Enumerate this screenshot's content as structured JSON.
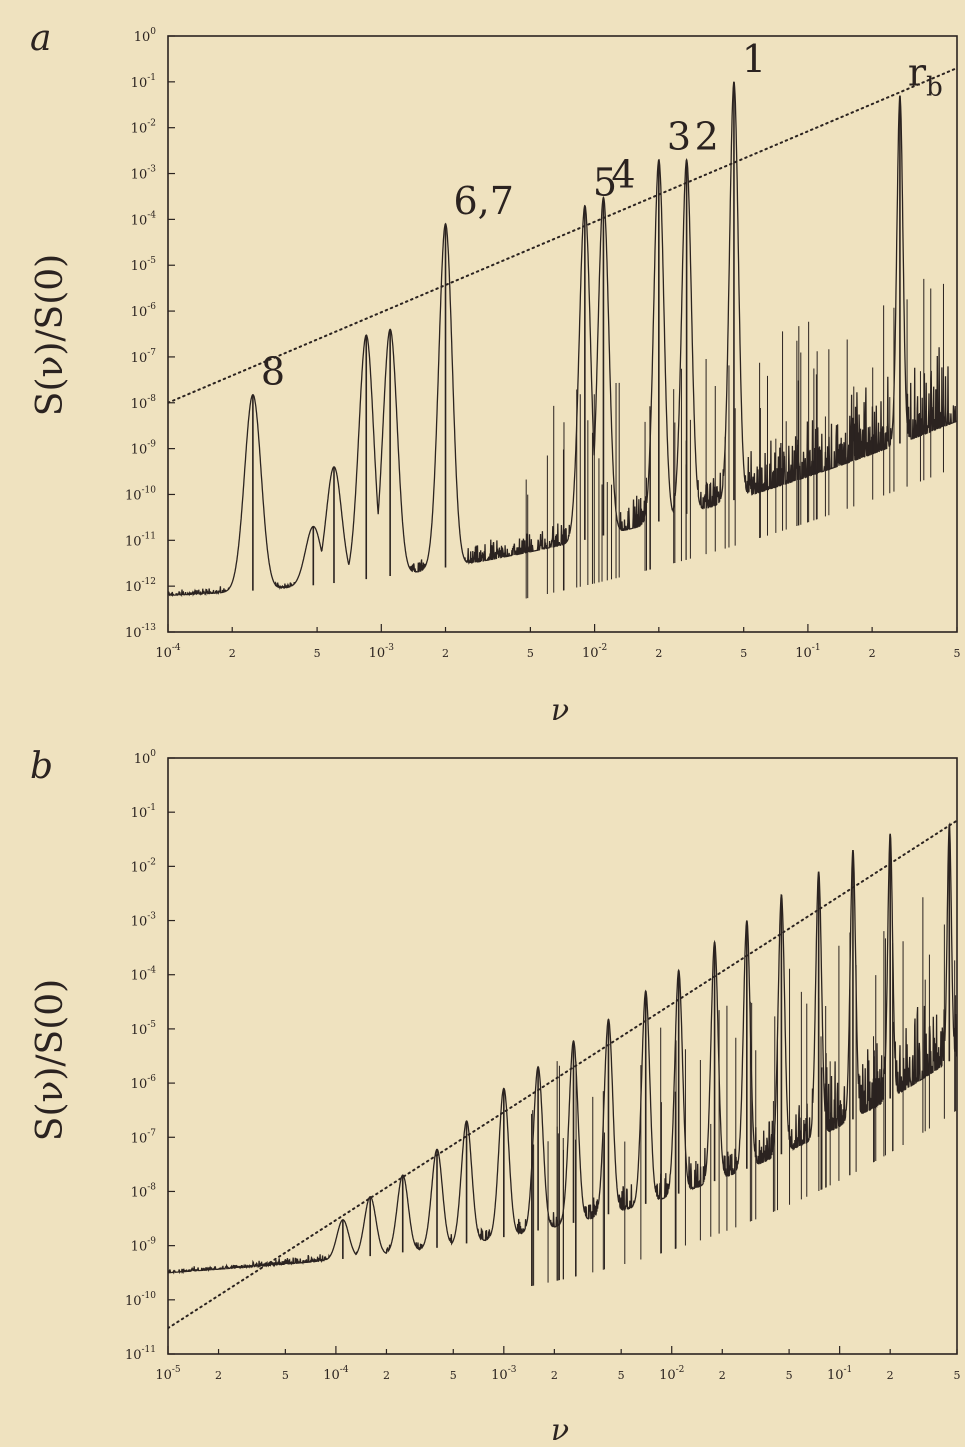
{
  "panels": [
    {
      "id": "a",
      "label": "a",
      "ylabel": "S(ν)/S(0)",
      "xlabel": "ν",
      "y_ticks": [
        "10^0",
        "10^-1",
        "10^-2",
        "10^-3",
        "10^-4",
        "10^-5",
        "10^-6",
        "10^-7",
        "10^-8",
        "10^-9",
        "10^-10",
        "10^-11",
        "10^-12",
        "10^-13"
      ],
      "x_ticks": [
        "10^-4",
        "2",
        "5",
        "10^-3",
        "2",
        "5",
        "10^-2",
        "2",
        "5",
        "10^-1",
        "2",
        "5"
      ],
      "annotations": [
        "8",
        "6,7",
        "5",
        "4",
        "3",
        "2",
        "1",
        "r_b"
      ]
    },
    {
      "id": "b",
      "label": "b",
      "ylabel": "S(ν)/S(0)",
      "xlabel": "ν",
      "y_ticks": [
        "10^0",
        "10^-1",
        "10^-2",
        "10^-3",
        "10^-4",
        "10^-5",
        "10^-6",
        "10^-7",
        "10^-8",
        "10^-9",
        "10^-10",
        "10^-11"
      ],
      "x_ticks": [
        "10^-5",
        "2",
        "5",
        "10^-4",
        "2",
        "5",
        "10^-3",
        "2",
        "5",
        "10^-2",
        "2",
        "5",
        "10^-1",
        "2",
        "5"
      ],
      "annotations": []
    }
  ],
  "chart_data": [
    {
      "type": "line",
      "panel": "a",
      "xscale": "log",
      "yscale": "log",
      "xlim": [
        0.0001,
        0.5
      ],
      "ylim": [
        1e-13,
        1
      ],
      "xlabel": "ν",
      "ylabel": "S(ν)/S(0)",
      "grid": false,
      "envelope_line": {
        "style": "dotted",
        "points": [
          [
            0.0001,
            1e-08
          ],
          [
            0.5,
            0.2
          ]
        ]
      },
      "peaks": [
        {
          "label": "8",
          "x": 0.00025,
          "y": 1.5e-08
        },
        {
          "label": "",
          "x": 0.00048,
          "y": 2e-11
        },
        {
          "label": "",
          "x": 0.0006,
          "y": 4e-10
        },
        {
          "label": "",
          "x": 0.00085,
          "y": 3e-07
        },
        {
          "label": "",
          "x": 0.0011,
          "y": 4e-07
        },
        {
          "label": "6,7",
          "x": 0.002,
          "y": 8e-05
        },
        {
          "label": "5",
          "x": 0.009,
          "y": 0.0002
        },
        {
          "label": "4",
          "x": 0.011,
          "y": 0.0003
        },
        {
          "label": "3",
          "x": 0.02,
          "y": 0.002
        },
        {
          "label": "2",
          "x": 0.027,
          "y": 0.002
        },
        {
          "label": "1",
          "x": 0.045,
          "y": 0.1
        },
        {
          "label": "r_b",
          "x": 0.27,
          "y": 0.05
        }
      ]
    },
    {
      "type": "line",
      "panel": "b",
      "xscale": "log",
      "yscale": "log",
      "xlim": [
        1e-05,
        0.5
      ],
      "ylim": [
        1e-11,
        1
      ],
      "xlabel": "ν",
      "ylabel": "S(ν)/S(0)",
      "grid": false,
      "envelope_line": {
        "style": "dotted",
        "points": [
          [
            1e-05,
            3e-11
          ],
          [
            0.5,
            0.07
          ]
        ]
      },
      "peaks": [
        {
          "label": "",
          "x": 0.00011,
          "y": 3e-09
        },
        {
          "label": "",
          "x": 0.00016,
          "y": 8e-09
        },
        {
          "label": "",
          "x": 0.00025,
          "y": 2e-08
        },
        {
          "label": "",
          "x": 0.0004,
          "y": 6e-08
        },
        {
          "label": "",
          "x": 0.0006,
          "y": 2e-07
        },
        {
          "label": "",
          "x": 0.001,
          "y": 8e-07
        },
        {
          "label": "",
          "x": 0.0016,
          "y": 2e-06
        },
        {
          "label": "",
          "x": 0.0026,
          "y": 6e-06
        },
        {
          "label": "",
          "x": 0.0042,
          "y": 1.5e-05
        },
        {
          "label": "",
          "x": 0.007,
          "y": 5e-05
        },
        {
          "label": "",
          "x": 0.011,
          "y": 0.00012
        },
        {
          "label": "",
          "x": 0.018,
          "y": 0.0004
        },
        {
          "label": "",
          "x": 0.028,
          "y": 0.001
        },
        {
          "label": "",
          "x": 0.045,
          "y": 0.003
        },
        {
          "label": "",
          "x": 0.075,
          "y": 0.008
        },
        {
          "label": "",
          "x": 0.12,
          "y": 0.02
        },
        {
          "label": "",
          "x": 0.2,
          "y": 0.04
        },
        {
          "label": "",
          "x": 0.45,
          "y": 0.06
        }
      ]
    }
  ]
}
